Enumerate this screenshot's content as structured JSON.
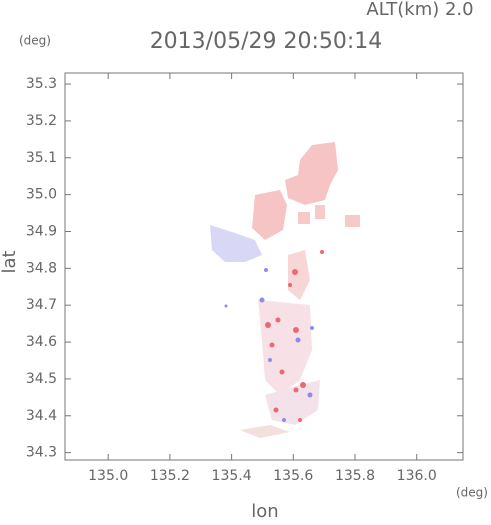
{
  "chart_data": {
    "type": "map",
    "header": "ALT(km) 2.0",
    "title": "2013/05/29 20:50:14",
    "y_unit": "(deg)",
    "x_unit": "(deg)",
    "xlabel": "lon",
    "ylabel": "lat",
    "xlim": [
      134.86,
      136.15
    ],
    "ylim": [
      34.28,
      35.33
    ],
    "xticks": [
      {
        "value": 135.0,
        "label": "135.0"
      },
      135.2,
      135.4,
      135.6,
      135.8,
      {
        "value": 136.0,
        "label": "136.0"
      }
    ],
    "yticks": [
      35.3,
      35.2,
      35.1,
      {
        "value": 35.0,
        "label": "35.0"
      },
      34.9,
      34.8,
      34.7,
      34.6,
      34.5,
      34.4,
      34.3
    ]
  }
}
